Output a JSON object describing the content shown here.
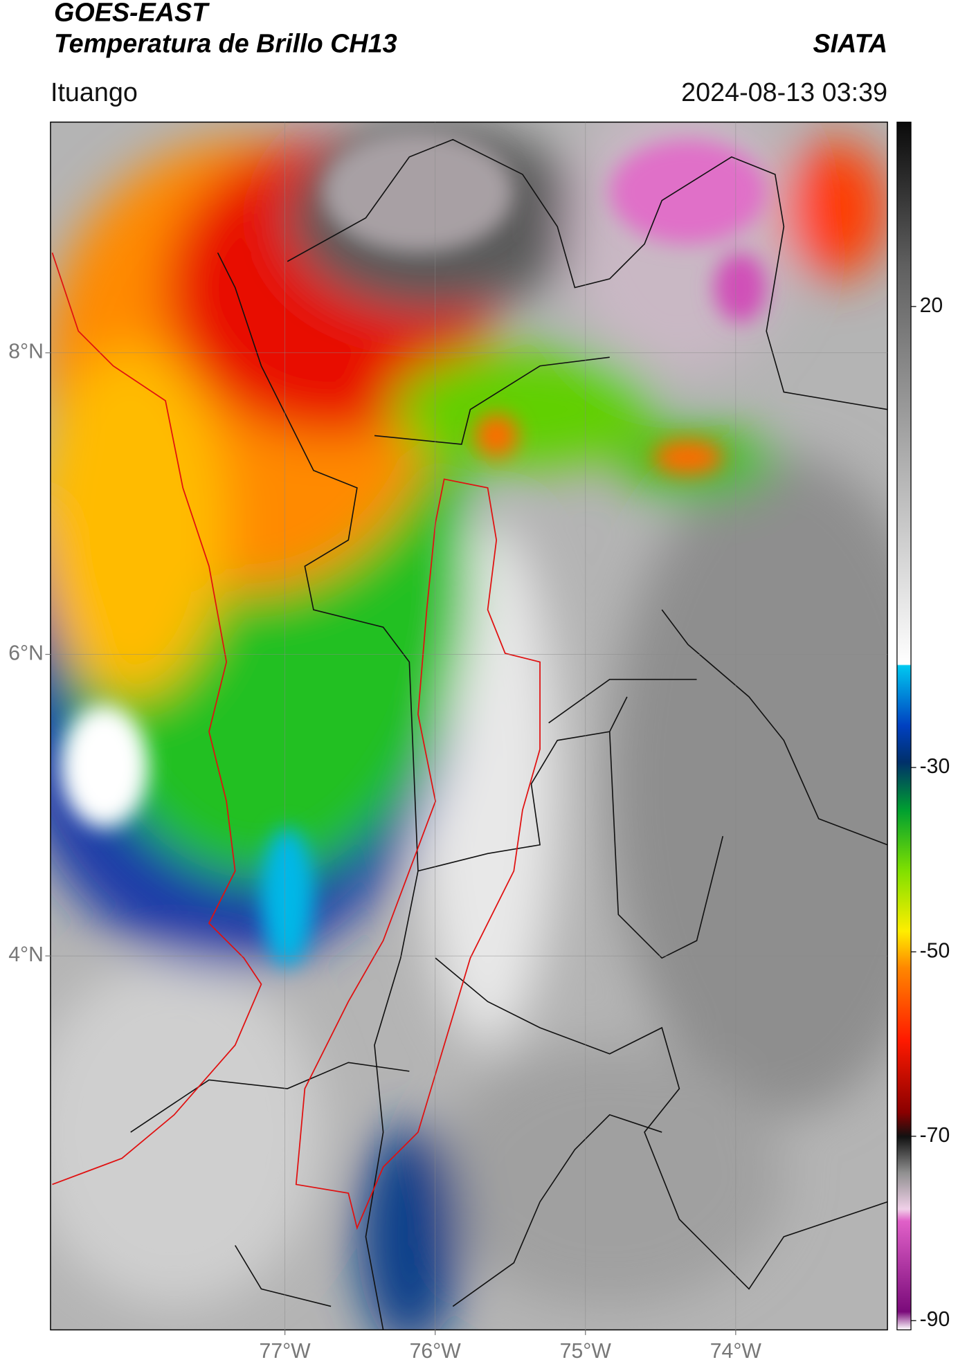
{
  "header": {
    "title": "GOES-EAST",
    "subtitle": "Temperatura de Brillo CH13",
    "source": "SIATA",
    "location": "Ituango",
    "datetime": "2024-08-13 03:39"
  },
  "map": {
    "xlim": [
      -78.56,
      -72.99
    ],
    "ylim": [
      1.52,
      9.53
    ],
    "xticks": [
      {
        "value": -77,
        "label": "77°W"
      },
      {
        "value": -76,
        "label": "76°W"
      },
      {
        "value": -75,
        "label": "75°W"
      },
      {
        "value": -74,
        "label": "74°W"
      }
    ],
    "yticks": [
      {
        "value": 8,
        "label": "8°N"
      },
      {
        "value": 6,
        "label": "6°N"
      },
      {
        "value": 4,
        "label": "4°N"
      }
    ]
  },
  "colorbar": {
    "lim": [
      -91,
      40
    ],
    "ticks": [
      20,
      -30,
      -50,
      -70,
      -90
    ]
  }
}
